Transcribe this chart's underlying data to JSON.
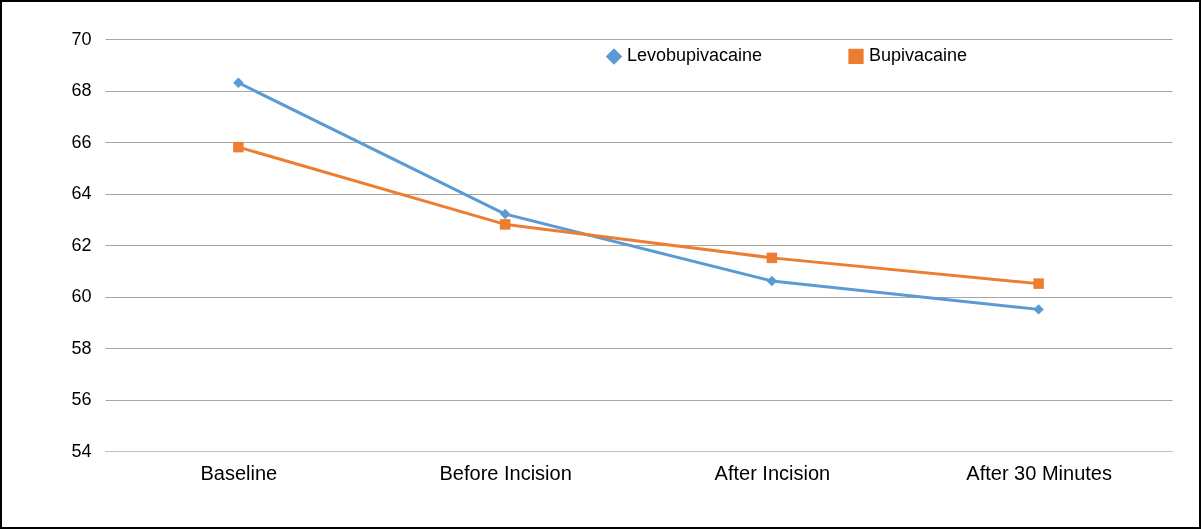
{
  "chart_data": {
    "type": "line",
    "categories": [
      "Baseline",
      "Before Incision",
      "After Incision",
      "After 30 Minutes"
    ],
    "series": [
      {
        "name": "Levobupivacaine",
        "color": "#5b9bd5",
        "marker": "diamond",
        "values": [
          68.3,
          63.2,
          60.6,
          59.5
        ]
      },
      {
        "name": "Bupivacaine",
        "color": "#ed7d31",
        "marker": "square",
        "values": [
          65.8,
          62.8,
          61.5,
          60.5
        ]
      }
    ],
    "ylim": [
      54,
      70
    ],
    "yticks": [
      54,
      56,
      58,
      60,
      62,
      64,
      66,
      68,
      70
    ],
    "grid": "y",
    "legend": "top right",
    "line_style": "solid"
  }
}
